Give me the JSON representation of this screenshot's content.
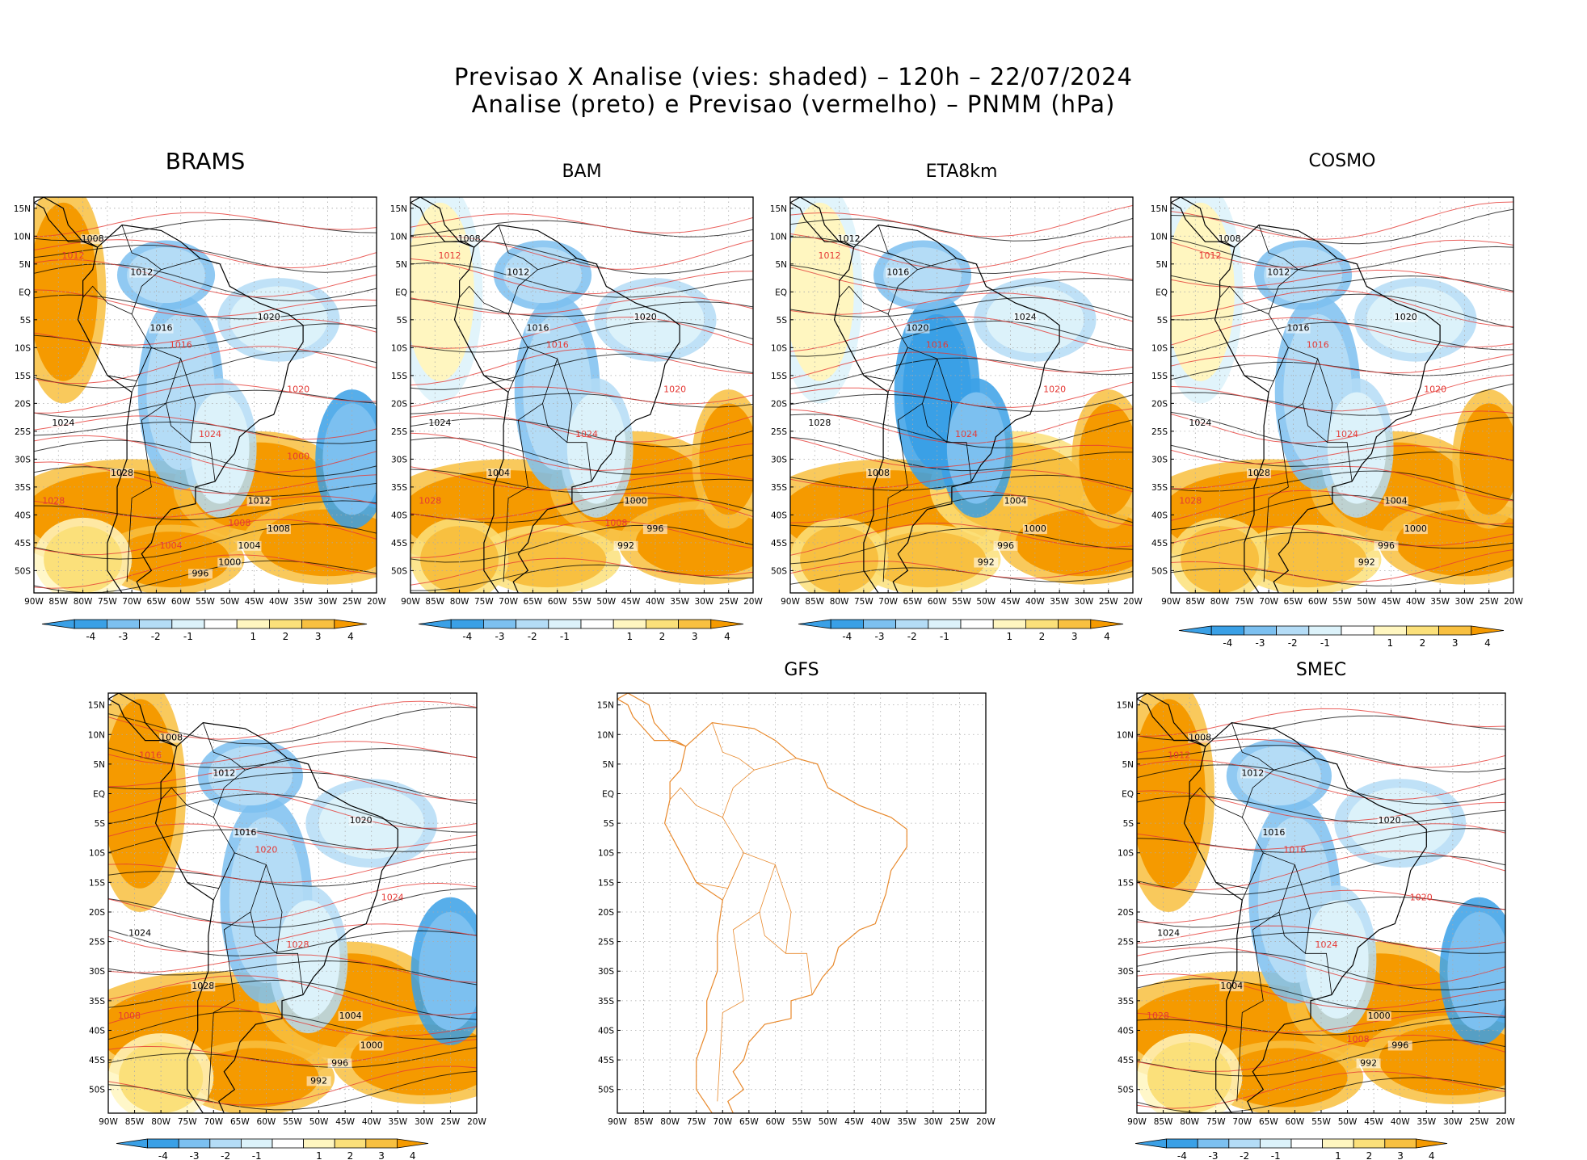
{
  "title": {
    "line1": "Previsao X Analise (vies: shaded) – 120h – 22/07/2024",
    "line2": "Analise (preto) e Previsao (vermelho) – PNMM (hPa)"
  },
  "colors": {
    "bias_neg4": "#3aa0e6",
    "bias_neg3": "#7cc0f0",
    "bias_neg2": "#b4dcf6",
    "bias_neg1": "#dcf2fa",
    "bias_0": "#ffffff",
    "bias_pos1": "#fff6c0",
    "bias_pos2": "#fbe07a",
    "bias_pos3": "#f8c040",
    "bias_pos4": "#f59a00",
    "analysis_contour": "#000000",
    "forecast_contour": "#e53935",
    "gfs_coastline": "#e8892c",
    "grid": "#aaaaaa"
  },
  "chart_data": {
    "type": "map-grid",
    "lat_ticks": [
      "15N",
      "10N",
      "5N",
      "EQ",
      "5S",
      "10S",
      "15S",
      "20S",
      "25S",
      "30S",
      "35S",
      "40S",
      "45S",
      "50S"
    ],
    "lon_ticks": [
      "90W",
      "85W",
      "80W",
      "75W",
      "70W",
      "65W",
      "60W",
      "55W",
      "50W",
      "45W",
      "40W",
      "35W",
      "30W",
      "25W",
      "20W"
    ],
    "colorbar_ticks": [
      "-4",
      "-3",
      "-2",
      "-1",
      "1",
      "2",
      "3",
      "4"
    ],
    "colorbar_levels": [
      -4,
      -3,
      -2,
      -1,
      0,
      1,
      2,
      3,
      4
    ],
    "panels": [
      {
        "name": "BRAMS",
        "has_data": true,
        "bias_field": "wet",
        "analysis_labels": [
          "1008",
          "1012",
          "1016",
          "1020",
          "1024",
          "1028",
          "1012",
          "1008",
          "1004",
          "1000",
          "996"
        ],
        "forecast_labels": [
          "1012",
          "1016",
          "1020",
          "1024",
          "1028",
          "1008",
          "1004",
          "1000"
        ]
      },
      {
        "name": "BAM",
        "has_data": true,
        "bias_field": "mixed",
        "analysis_labels": [
          "1008",
          "1012",
          "1016",
          "1020",
          "1024",
          "1004",
          "1000",
          "996",
          "992"
        ],
        "forecast_labels": [
          "1012",
          "1016",
          "1020",
          "1024",
          "1028",
          "1008"
        ]
      },
      {
        "name": "ETA8km",
        "has_data": true,
        "bias_field": "dry",
        "analysis_labels": [
          "1012",
          "1016",
          "1020",
          "1024",
          "1028",
          "1008",
          "1004",
          "1000",
          "996",
          "992"
        ],
        "forecast_labels": [
          "1012",
          "1016",
          "1020",
          "1024"
        ]
      },
      {
        "name": "COSMO",
        "has_data": true,
        "bias_field": "mixed",
        "analysis_labels": [
          "1008",
          "1012",
          "1016",
          "1020",
          "1024",
          "1028",
          "1004",
          "1000",
          "996",
          "992"
        ],
        "forecast_labels": [
          "1012",
          "1016",
          "1020",
          "1024",
          "1028"
        ]
      },
      {
        "name": "",
        "has_data": true,
        "bias_field": "wet",
        "analysis_labels": [
          "1008",
          "1012",
          "1016",
          "1020",
          "1024",
          "1028",
          "1004",
          "1000",
          "996",
          "992"
        ],
        "forecast_labels": [
          "1016",
          "1020",
          "1024",
          "1028",
          "1008"
        ]
      },
      {
        "name": "GFS",
        "has_data": false,
        "bias_field": "none",
        "analysis_labels": [],
        "forecast_labels": []
      },
      {
        "name": "SMEC",
        "has_data": true,
        "bias_field": "wet",
        "analysis_labels": [
          "1008",
          "1012",
          "1016",
          "1020",
          "1024",
          "1004",
          "1000",
          "996",
          "992"
        ],
        "forecast_labels": [
          "1012",
          "1016",
          "1020",
          "1024",
          "1028",
          "1008"
        ]
      }
    ]
  }
}
